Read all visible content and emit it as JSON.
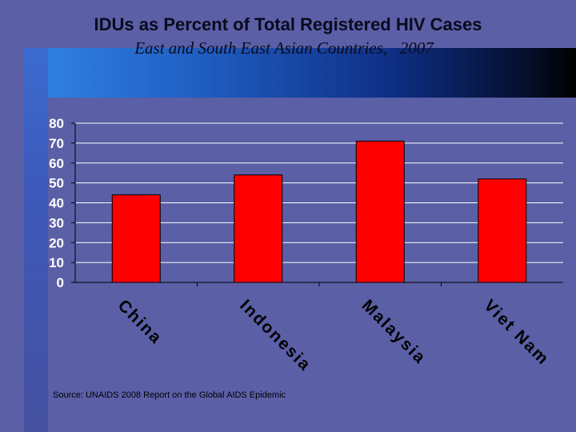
{
  "slide": {
    "title": "IDUs as Percent of Total Registered HIV Cases",
    "subtitle": "East and South East Asian Countries,   2007",
    "source": "Source: UNAIDS 2008 Report on the Global AIDS Epidemic"
  },
  "colors": {
    "background": "#5a5fa6",
    "bar": "#ff0000",
    "plot_area": "#5a5fa6",
    "gridline": "#ffffff"
  },
  "chart_data": {
    "type": "bar",
    "title": "IDUs as Percent of Total Registered HIV Cases",
    "subtitle": "East and South East Asian Countries,   2007",
    "categories": [
      "China",
      "Indonesia",
      "Malaysia",
      "Viet Nam"
    ],
    "values": [
      44,
      54,
      71,
      52
    ],
    "ylim": [
      0,
      80
    ],
    "yticks": [
      0,
      10,
      20,
      30,
      40,
      50,
      60,
      70,
      80
    ],
    "xlabel": "",
    "ylabel": "",
    "grid": true,
    "legend": "none"
  }
}
